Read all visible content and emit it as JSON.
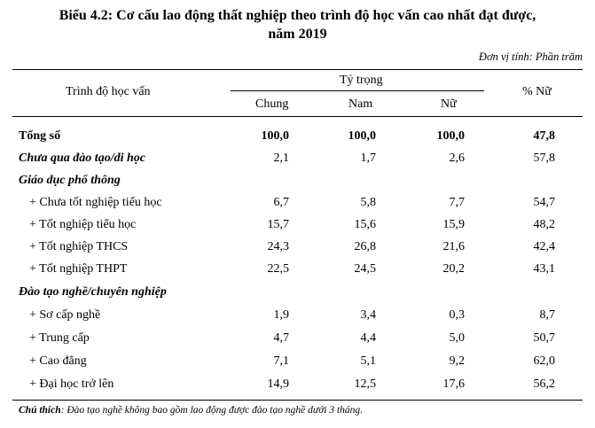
{
  "title": {
    "line1": "Biểu 4.2: Cơ cấu lao động thất nghiệp theo trình độ học vấn cao nhất đạt được,",
    "line2": "năm 2019"
  },
  "unit": "Đơn vị tính: Phần trăm",
  "header": {
    "education": "Trình độ học vấn",
    "proportion": "Tỷ trọng",
    "general": "Chung",
    "male": "Nam",
    "female": "Nữ",
    "female_pct": "% Nữ"
  },
  "rows": [
    {
      "label": "Tổng số",
      "style": "bold",
      "v": [
        "100,0",
        "100,0",
        "100,0",
        "47,8"
      ]
    },
    {
      "label": "Chưa qua đào tạo/di học",
      "style": "bi",
      "v": [
        "2,1",
        "1,7",
        "2,6",
        "57,8"
      ]
    },
    {
      "label": "Giáo dục phổ thông",
      "style": "bi",
      "v": [
        "",
        "",
        "",
        ""
      ]
    },
    {
      "label": "+ Chưa tốt nghiệp tiểu học",
      "style": "sub",
      "v": [
        "6,7",
        "5,8",
        "7,7",
        "54,7"
      ]
    },
    {
      "label": "+ Tốt nghiệp tiểu học",
      "style": "sub",
      "v": [
        "15,7",
        "15,6",
        "15,9",
        "48,2"
      ]
    },
    {
      "label": "+ Tốt nghiệp THCS",
      "style": "sub",
      "v": [
        "24,3",
        "26,8",
        "21,6",
        "42,4"
      ]
    },
    {
      "label": "+ Tốt nghiệp THPT",
      "style": "sub",
      "v": [
        "22,5",
        "24,5",
        "20,2",
        "43,1"
      ]
    },
    {
      "label": "Đào tạo nghề/chuyên nghiệp",
      "style": "bi",
      "v": [
        "",
        "",
        "",
        ""
      ]
    },
    {
      "label": "+ Sơ cấp nghề",
      "style": "sub",
      "v": [
        "1,9",
        "3,4",
        "0,3",
        "8,7"
      ]
    },
    {
      "label": "+ Trung cấp",
      "style": "sub",
      "v": [
        "4,7",
        "4,4",
        "5,0",
        "50,7"
      ]
    },
    {
      "label": "+ Cao đẳng",
      "style": "sub",
      "v": [
        "7,1",
        "5,1",
        "9,2",
        "62,0"
      ]
    },
    {
      "label": "+ Đại học trở lên",
      "style": "sub",
      "v": [
        "14,9",
        "12,5",
        "17,6",
        "56,2"
      ]
    }
  ],
  "note": {
    "label": "Chú thích",
    "text": ": Đào tạo nghề không bao gồm lao động được đào tạo nghề dưới 3 tháng."
  }
}
